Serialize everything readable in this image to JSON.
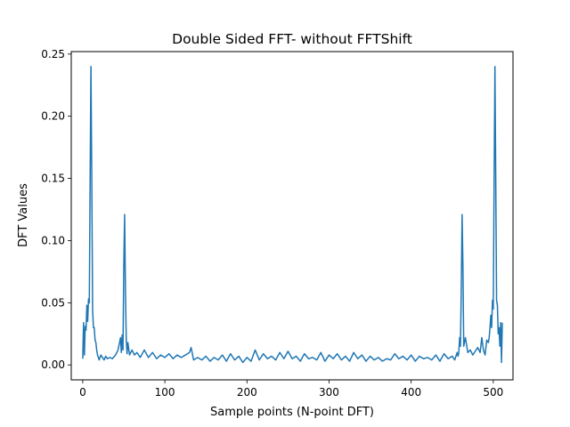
{
  "chart_data": {
    "type": "line",
    "title": "Double Sided FFT- without FFTShift",
    "xlabel": "Sample points (N-point DFT)",
    "ylabel": "DFT Values",
    "xlim": [
      -14,
      524
    ],
    "ylim": [
      -0.012,
      0.252
    ],
    "xticks": [
      0,
      100,
      200,
      300,
      400,
      500
    ],
    "yticks": [
      0.0,
      0.05,
      0.1,
      0.15,
      0.2,
      0.25
    ],
    "ytick_labels": [
      "0.00",
      "0.05",
      "0.10",
      "0.15",
      "0.20",
      "0.25"
    ],
    "grid": false,
    "line_color": "#1f77b4",
    "series": [
      {
        "x": [
          0,
          1,
          2,
          3,
          4,
          5,
          6,
          7,
          8,
          9,
          10,
          11,
          12,
          13,
          14,
          15,
          16,
          17,
          18,
          20,
          22,
          24,
          26,
          28,
          30,
          33,
          36,
          40,
          43,
          46,
          47,
          48,
          49,
          50,
          51,
          52,
          53,
          54,
          55,
          57,
          60,
          63,
          66,
          70,
          75,
          80,
          85,
          90,
          95,
          100,
          105,
          110,
          115,
          120,
          125,
          130,
          132,
          135,
          140,
          145,
          150,
          155,
          160,
          165,
          170,
          175,
          180,
          185,
          190,
          195,
          200,
          205,
          210,
          215,
          220,
          225,
          230,
          235,
          240,
          245,
          250,
          255,
          260,
          265,
          270,
          275,
          280,
          285,
          290,
          295,
          300,
          305,
          310,
          315,
          320,
          325,
          330,
          335,
          340,
          345,
          350,
          355,
          360,
          365,
          370,
          375,
          380,
          385,
          390,
          395,
          400,
          405,
          410,
          415,
          420,
          425,
          430,
          435,
          440,
          445,
          450,
          453,
          456,
          457,
          458,
          459,
          460,
          461,
          462,
          463,
          464,
          466,
          469,
          472,
          475,
          478,
          481,
          484,
          486,
          488,
          490,
          492,
          494,
          495,
          496,
          497,
          498,
          499,
          500,
          501,
          502,
          503,
          504,
          505,
          506,
          507,
          508,
          509,
          510,
          511
        ],
        "y": [
          0.005,
          0.034,
          0.008,
          0.031,
          0.028,
          0.048,
          0.035,
          0.053,
          0.05,
          0.15,
          0.24,
          0.15,
          0.045,
          0.03,
          0.03,
          0.02,
          0.018,
          0.012,
          0.008,
          0.004,
          0.008,
          0.006,
          0.004,
          0.007,
          0.005,
          0.006,
          0.005,
          0.008,
          0.012,
          0.022,
          0.01,
          0.024,
          0.012,
          0.08,
          0.121,
          0.06,
          0.02,
          0.009,
          0.018,
          0.008,
          0.012,
          0.008,
          0.01,
          0.006,
          0.012,
          0.006,
          0.01,
          0.005,
          0.008,
          0.006,
          0.009,
          0.005,
          0.008,
          0.006,
          0.008,
          0.01,
          0.014,
          0.004,
          0.006,
          0.004,
          0.007,
          0.003,
          0.006,
          0.004,
          0.008,
          0.003,
          0.009,
          0.004,
          0.007,
          0.002,
          0.006,
          0.003,
          0.012,
          0.004,
          0.009,
          0.005,
          0.007,
          0.004,
          0.01,
          0.005,
          0.011,
          0.005,
          0.007,
          0.003,
          0.009,
          0.005,
          0.006,
          0.004,
          0.01,
          0.003,
          0.008,
          0.005,
          0.009,
          0.004,
          0.007,
          0.003,
          0.01,
          0.005,
          0.008,
          0.003,
          0.007,
          0.004,
          0.006,
          0.003,
          0.005,
          0.004,
          0.009,
          0.005,
          0.007,
          0.004,
          0.008,
          0.003,
          0.007,
          0.005,
          0.006,
          0.004,
          0.008,
          0.003,
          0.009,
          0.005,
          0.007,
          0.004,
          0.01,
          0.007,
          0.01,
          0.022,
          0.015,
          0.06,
          0.121,
          0.08,
          0.015,
          0.022,
          0.01,
          0.012,
          0.008,
          0.011,
          0.014,
          0.01,
          0.022,
          0.012,
          0.008,
          0.02,
          0.018,
          0.022,
          0.03,
          0.04,
          0.03,
          0.052,
          0.045,
          0.15,
          0.24,
          0.15,
          0.052,
          0.048,
          0.025,
          0.03,
          0.015,
          0.034,
          0.002,
          0.034
        ]
      }
    ]
  }
}
